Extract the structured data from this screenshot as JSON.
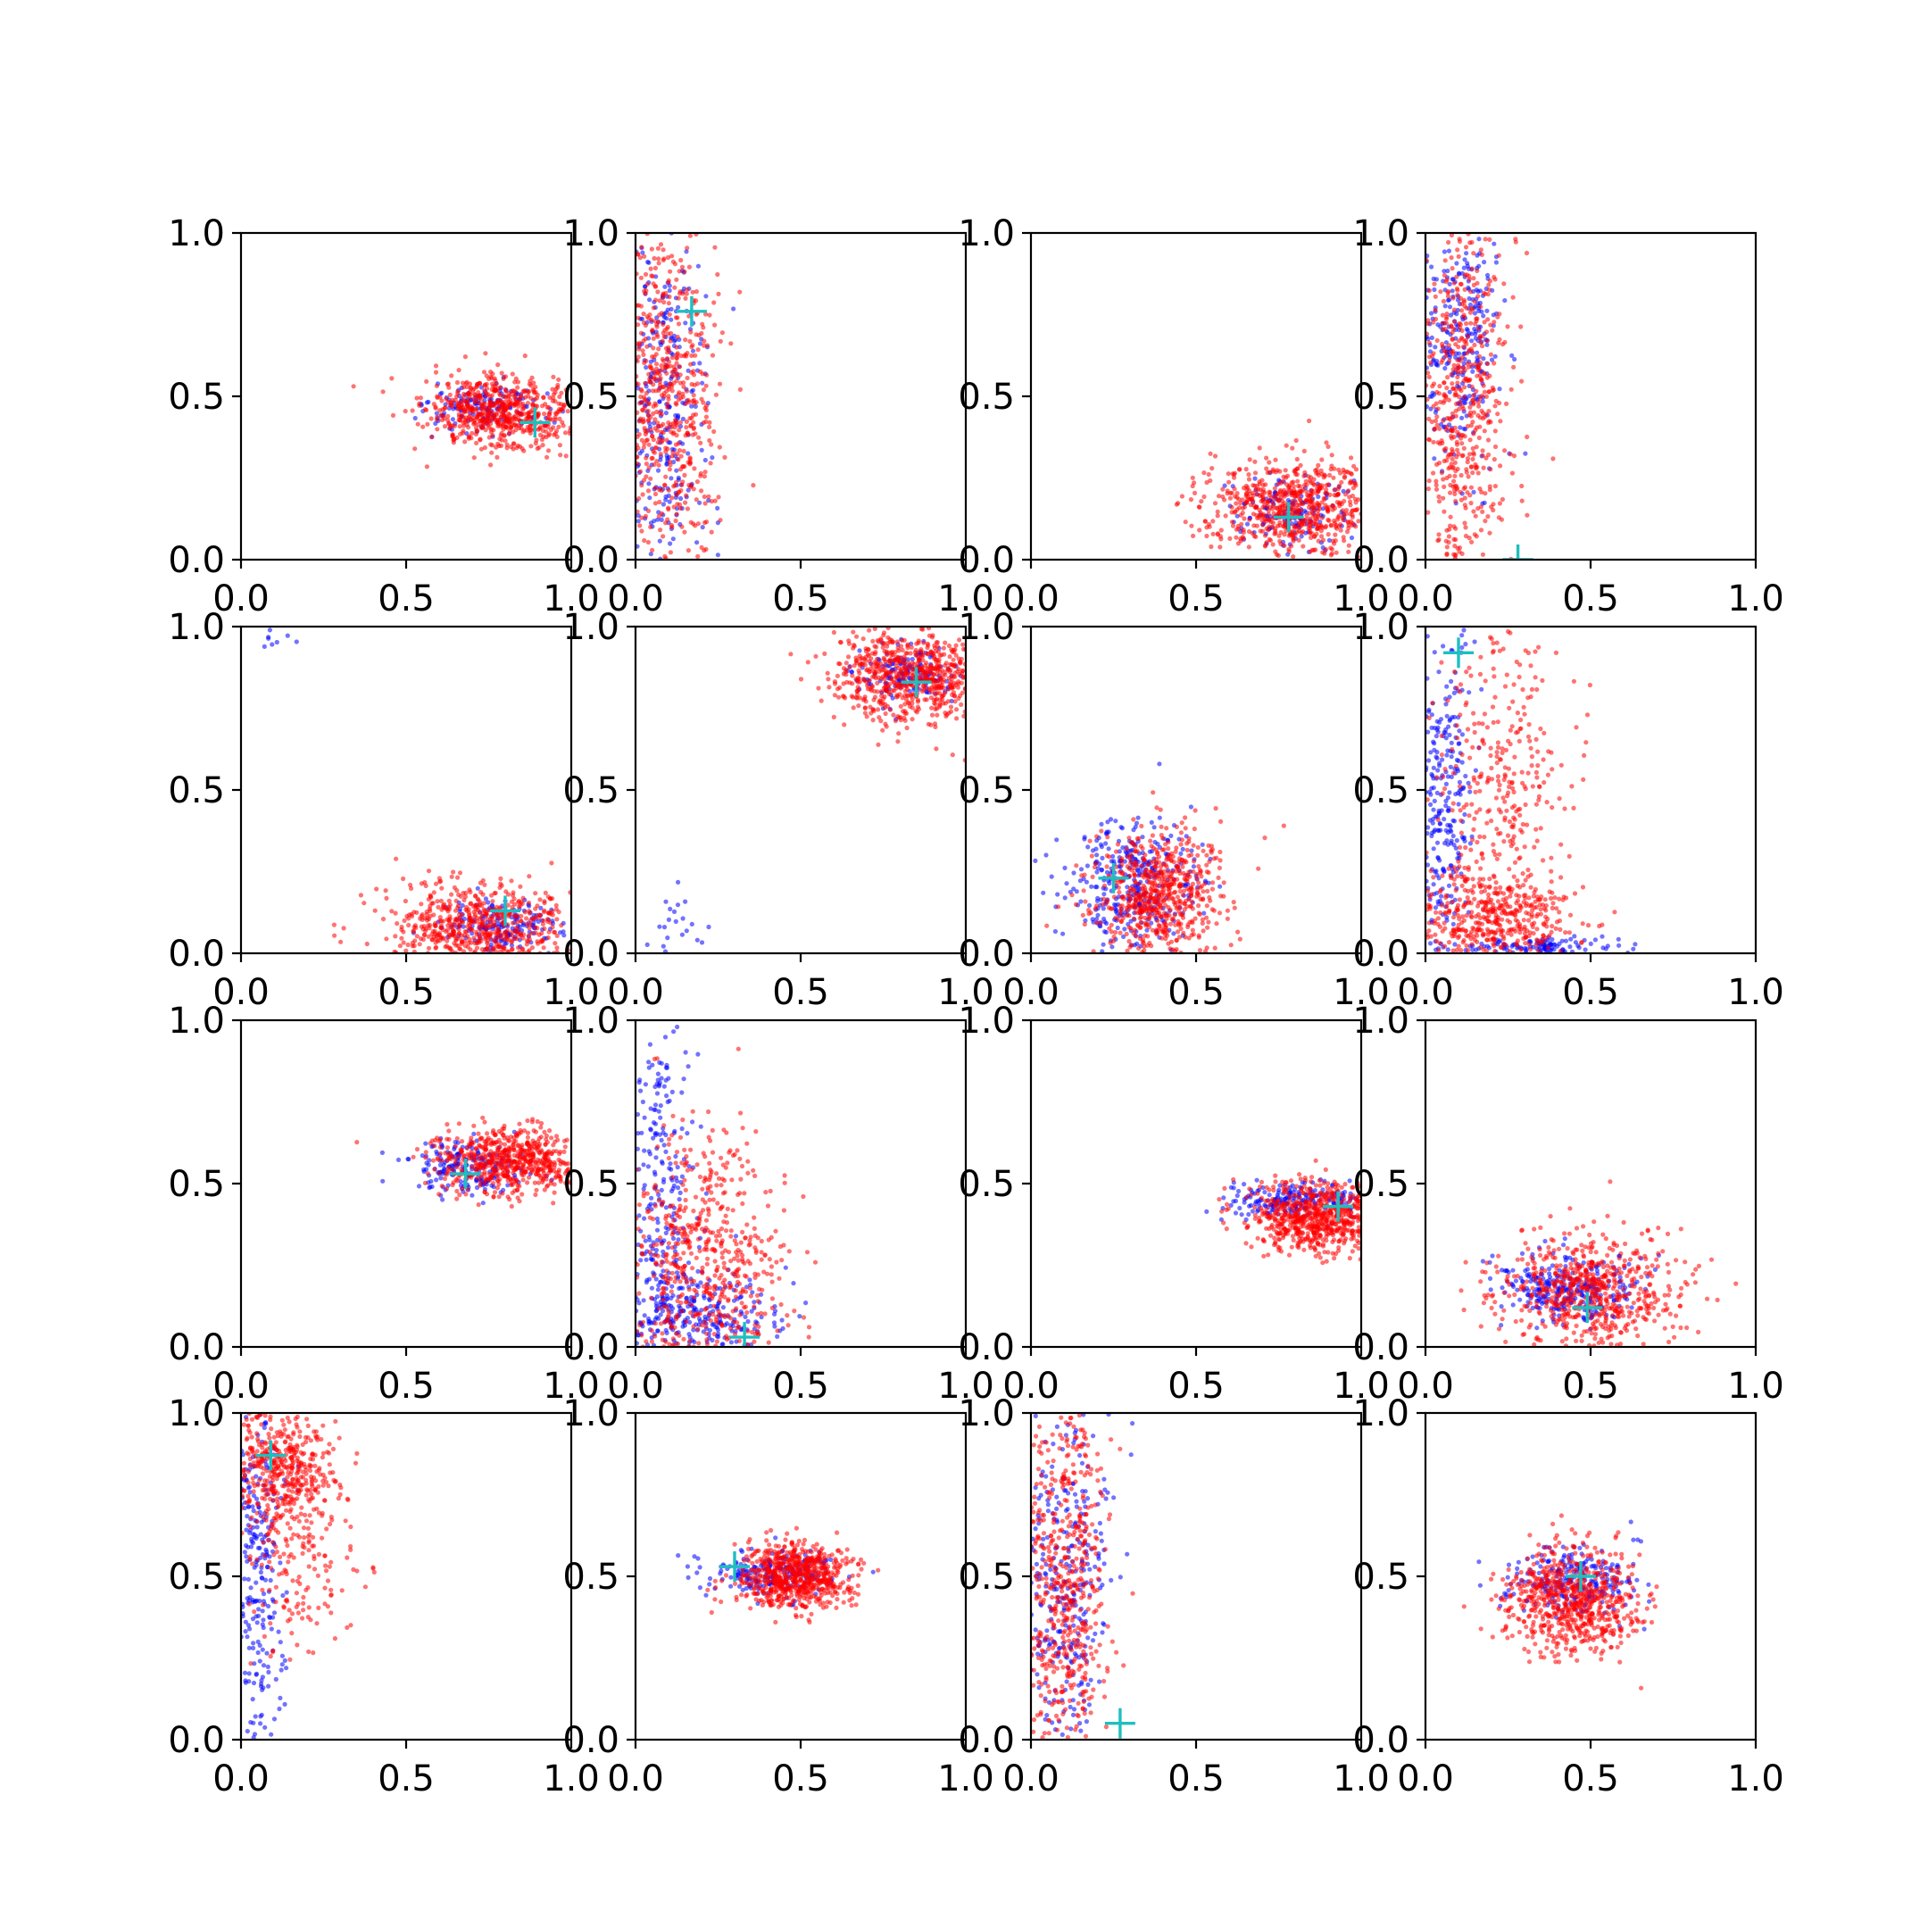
{
  "chart_data": {
    "type": "scatter",
    "layout": {
      "rows": 4,
      "cols": 4
    },
    "xlim": [
      0,
      1
    ],
    "ylim": [
      0,
      1
    ],
    "ticks": [
      0.0,
      0.5,
      1.0
    ],
    "tick_labels": [
      "0.0",
      "0.5",
      "1.0"
    ],
    "grid": false,
    "series_colors": {
      "blue": "#0000ff",
      "red": "#ff0000",
      "marker": "#1fbfbf"
    },
    "panels": [
      {
        "marker": [
          0.89,
          0.42
        ],
        "clusters": [
          {
            "color": "blue",
            "cx": 0.74,
            "cy": 0.46,
            "sx": 0.09,
            "sy": 0.04,
            "n": 150
          },
          {
            "color": "red",
            "cx": 0.78,
            "cy": 0.45,
            "sx": 0.11,
            "sy": 0.055,
            "n": 650
          }
        ]
      },
      {
        "marker": [
          0.17,
          0.76
        ],
        "clusters": [
          {
            "color": "blue",
            "cx": 0.08,
            "cy": 0.5,
            "sx": 0.07,
            "sy": 0.3,
            "n": 350
          },
          {
            "color": "red",
            "cx": 0.09,
            "cy": 0.5,
            "sx": 0.08,
            "sy": 0.3,
            "n": 650
          }
        ]
      },
      {
        "marker": [
          0.78,
          0.13
        ],
        "clusters": [
          {
            "color": "blue",
            "cx": 0.78,
            "cy": 0.15,
            "sx": 0.08,
            "sy": 0.05,
            "n": 150
          },
          {
            "color": "red",
            "cx": 0.8,
            "cy": 0.16,
            "sx": 0.14,
            "sy": 0.07,
            "n": 700
          }
        ]
      },
      {
        "marker": [
          0.28,
          0.0
        ],
        "clusters": [
          {
            "color": "blue",
            "cx": 0.1,
            "cy": 0.7,
            "sx": 0.06,
            "sy": 0.2,
            "n": 300
          },
          {
            "color": "red",
            "cx": 0.11,
            "cy": 0.5,
            "sx": 0.07,
            "sy": 0.3,
            "n": 600
          }
        ]
      },
      {
        "marker": [
          0.8,
          0.13
        ],
        "clusters": [
          {
            "color": "blue",
            "cx": 0.8,
            "cy": 0.08,
            "sx": 0.09,
            "sy": 0.04,
            "n": 180
          },
          {
            "color": "red",
            "cx": 0.72,
            "cy": 0.08,
            "sx": 0.14,
            "sy": 0.07,
            "n": 650
          },
          {
            "color": "blue",
            "cx": 0.07,
            "cy": 0.97,
            "sx": 0.06,
            "sy": 0.02,
            "n": 10
          }
        ]
      },
      {
        "marker": [
          0.85,
          0.83
        ],
        "clusters": [
          {
            "color": "blue",
            "cx": 0.82,
            "cy": 0.86,
            "sx": 0.08,
            "sy": 0.04,
            "n": 150
          },
          {
            "color": "red",
            "cx": 0.83,
            "cy": 0.85,
            "sx": 0.12,
            "sy": 0.07,
            "n": 700
          },
          {
            "color": "blue",
            "cx": 0.12,
            "cy": 0.08,
            "sx": 0.05,
            "sy": 0.06,
            "n": 22
          }
        ]
      },
      {
        "marker": [
          0.25,
          0.23
        ],
        "clusters": [
          {
            "color": "blue",
            "cx": 0.3,
            "cy": 0.22,
            "sx": 0.1,
            "sy": 0.1,
            "n": 350
          },
          {
            "color": "red",
            "cx": 0.38,
            "cy": 0.18,
            "sx": 0.1,
            "sy": 0.1,
            "n": 650
          }
        ]
      },
      {
        "marker": [
          0.1,
          0.92
        ],
        "clusters": [
          {
            "color": "blue",
            "cx": 0.05,
            "cy": 0.45,
            "sx": 0.04,
            "sy": 0.3,
            "n": 300
          },
          {
            "color": "blue",
            "cx": 0.35,
            "cy": 0.02,
            "sx": 0.12,
            "sy": 0.015,
            "n": 120
          },
          {
            "color": "red",
            "cx": 0.2,
            "cy": 0.1,
            "sx": 0.12,
            "sy": 0.07,
            "n": 450
          },
          {
            "color": "red",
            "cx": 0.22,
            "cy": 0.55,
            "sx": 0.1,
            "sy": 0.25,
            "n": 350
          }
        ]
      },
      {
        "marker": [
          0.68,
          0.53
        ],
        "clusters": [
          {
            "color": "blue",
            "cx": 0.68,
            "cy": 0.55,
            "sx": 0.09,
            "sy": 0.04,
            "n": 200
          },
          {
            "color": "red",
            "cx": 0.82,
            "cy": 0.57,
            "sx": 0.11,
            "sy": 0.05,
            "n": 650
          }
        ]
      },
      {
        "marker": [
          0.33,
          0.03
        ],
        "clusters": [
          {
            "color": "blue",
            "cx": 0.08,
            "cy": 0.4,
            "sx": 0.06,
            "sy": 0.3,
            "n": 300
          },
          {
            "color": "blue",
            "cx": 0.2,
            "cy": 0.1,
            "sx": 0.12,
            "sy": 0.07,
            "n": 250
          },
          {
            "color": "red",
            "cx": 0.2,
            "cy": 0.25,
            "sx": 0.13,
            "sy": 0.2,
            "n": 650
          }
        ]
      },
      {
        "marker": [
          0.93,
          0.43
        ],
        "clusters": [
          {
            "color": "blue",
            "cx": 0.8,
            "cy": 0.45,
            "sx": 0.1,
            "sy": 0.025,
            "n": 200
          },
          {
            "color": "red",
            "cx": 0.86,
            "cy": 0.4,
            "sx": 0.1,
            "sy": 0.055,
            "n": 700
          }
        ]
      },
      {
        "marker": [
          0.49,
          0.12
        ],
        "clusters": [
          {
            "color": "blue",
            "cx": 0.43,
            "cy": 0.18,
            "sx": 0.1,
            "sy": 0.05,
            "n": 300
          },
          {
            "color": "red",
            "cx": 0.5,
            "cy": 0.17,
            "sx": 0.14,
            "sy": 0.09,
            "n": 650
          }
        ]
      },
      {
        "marker": [
          0.09,
          0.87
        ],
        "clusters": [
          {
            "color": "blue",
            "cx": 0.05,
            "cy": 0.5,
            "sx": 0.04,
            "sy": 0.3,
            "n": 300
          },
          {
            "color": "red",
            "cx": 0.12,
            "cy": 0.85,
            "sx": 0.08,
            "sy": 0.09,
            "n": 450
          },
          {
            "color": "red",
            "cx": 0.18,
            "cy": 0.55,
            "sx": 0.09,
            "sy": 0.15,
            "n": 180
          }
        ]
      },
      {
        "marker": [
          0.3,
          0.53
        ],
        "clusters": [
          {
            "color": "blue",
            "cx": 0.42,
            "cy": 0.51,
            "sx": 0.1,
            "sy": 0.035,
            "n": 220
          },
          {
            "color": "red",
            "cx": 0.48,
            "cy": 0.5,
            "sx": 0.09,
            "sy": 0.05,
            "n": 700
          }
        ]
      },
      {
        "marker": [
          0.27,
          0.05
        ],
        "clusters": [
          {
            "color": "blue",
            "cx": 0.1,
            "cy": 0.5,
            "sx": 0.07,
            "sy": 0.3,
            "n": 350
          },
          {
            "color": "red",
            "cx": 0.1,
            "cy": 0.5,
            "sx": 0.07,
            "sy": 0.3,
            "n": 600
          }
        ]
      },
      {
        "marker": [
          0.47,
          0.5
        ],
        "clusters": [
          {
            "color": "blue",
            "cx": 0.45,
            "cy": 0.48,
            "sx": 0.1,
            "sy": 0.05,
            "n": 250
          },
          {
            "color": "red",
            "cx": 0.45,
            "cy": 0.42,
            "sx": 0.1,
            "sy": 0.08,
            "n": 700
          }
        ]
      }
    ]
  }
}
